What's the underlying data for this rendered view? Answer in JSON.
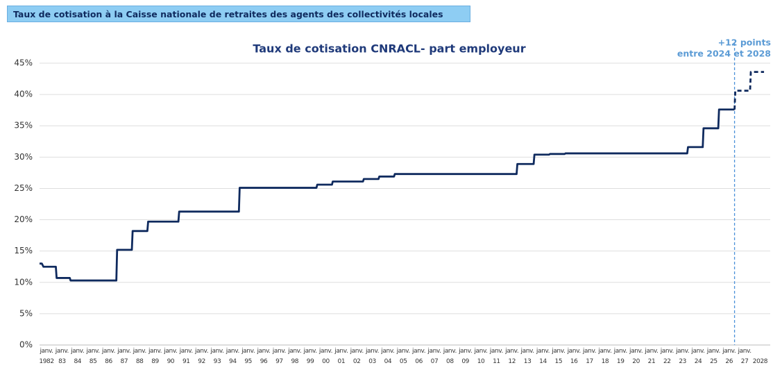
{
  "header": {
    "title": "Taux de cotisation à la Caisse nationale de retraites des agents des collectivités locales"
  },
  "chart_data": {
    "type": "line",
    "title": "Taux de cotisation CNRACL- part employeur",
    "annotation_lines": [
      "+12 points",
      "entre 2024 et 2028"
    ],
    "vline_x": 2026.8,
    "categories": [
      "janv. 1982",
      "janv. 83",
      "janv. 84",
      "janv. 85",
      "janv. 86",
      "janv. 87",
      "janv. 88",
      "janv. 89",
      "janv. 90",
      "janv. 91",
      "janv. 92",
      "janv. 93",
      "janv. 94",
      "janv. 95",
      "janv. 96",
      "janv. 97",
      "janv. 98",
      "janv. 99",
      "janv. 00",
      "janv. 01",
      "janv. 02",
      "janv. 03",
      "janv. 04",
      "janv. 05",
      "janv. 06",
      "janv. 07",
      "janv. 08",
      "janv. 09",
      "janv. 10",
      "janv. 11",
      "janv. 12",
      "janv. 13",
      "janv. 14",
      "janv. 15",
      "janv. 16",
      "janv. 17",
      "janv. 18",
      "janv. 19",
      "janv. 20",
      "janv. 21",
      "janv. 22",
      "janv. 23",
      "janv. 24",
      "janv. 25",
      "janv. 26",
      "janv. 27",
      "2028"
    ],
    "xlim": [
      1982,
      2029.1
    ],
    "ylim": [
      0,
      45
    ],
    "yticks": [
      {
        "value": 0,
        "label": "0%"
      },
      {
        "value": 5,
        "label": "5%"
      },
      {
        "value": 10,
        "label": "10%"
      },
      {
        "value": 15,
        "label": "15%"
      },
      {
        "value": 20,
        "label": "20%"
      },
      {
        "value": 25,
        "label": "25%"
      },
      {
        "value": 30,
        "label": "30%"
      },
      {
        "value": 35,
        "label": "35%"
      },
      {
        "value": 40,
        "label": "40%"
      },
      {
        "value": 45,
        "label": "45%"
      }
    ],
    "grid": true,
    "series": [
      {
        "color": "#0f2a5e",
        "dashed": false,
        "x": [
          1982.0,
          1982.15,
          1982.25,
          1983.05,
          1983.1,
          1983.95,
          1984.0,
          1986.95,
          1987.0,
          1987.95,
          1988.0,
          1988.95,
          1989.0,
          1990.95,
          1991.0,
          1994.85,
          1994.9,
          1999.85,
          1999.9,
          2000.85,
          2000.9,
          2002.85,
          2002.9,
          2003.85,
          2003.9,
          2004.85,
          2004.9,
          2012.75,
          2012.8,
          2013.85,
          2013.9,
          2014.85,
          2014.9,
          2015.85,
          2015.9,
          2023.75,
          2023.8,
          2024.75,
          2024.8,
          2025.75,
          2025.8,
          2026.8
        ],
        "values": [
          13,
          13,
          12.5,
          12.5,
          10.7,
          10.7,
          10.3,
          10.3,
          15.2,
          15.2,
          18.2,
          18.2,
          19.7,
          19.7,
          21.3,
          21.3,
          25.1,
          25.1,
          25.6,
          25.6,
          26.1,
          26.1,
          26.5,
          26.5,
          26.9,
          26.9,
          27.3,
          27.3,
          28.9,
          28.9,
          30.4,
          30.4,
          30.5,
          30.5,
          30.6,
          30.6,
          31.6,
          31.6,
          34.6,
          34.6,
          37.6,
          37.6
        ]
      },
      {
        "color": "#0f2a5e",
        "dashed": true,
        "x": [
          2026.8,
          2026.85,
          2027.8,
          2027.85,
          2028.7
        ],
        "values": [
          37.6,
          40.6,
          40.6,
          43.6,
          43.6
        ]
      }
    ]
  }
}
